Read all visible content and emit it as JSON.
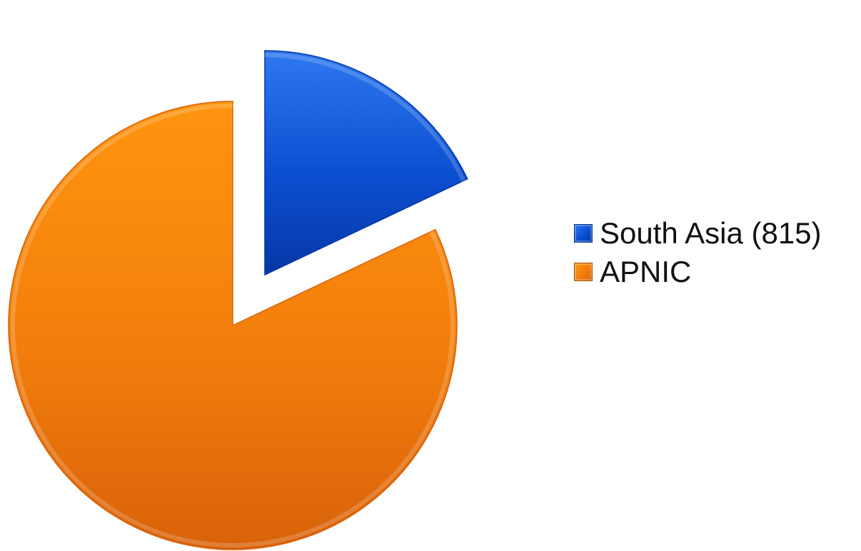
{
  "chart_data": {
    "type": "pie",
    "categories": [
      "South Asia (815)",
      "APNIC"
    ],
    "values": [
      815,
      3722
    ],
    "exploded": [
      true,
      false
    ],
    "start_angle_deg": 0,
    "legend_position": "right",
    "colors": [
      "#0b4fd1",
      "#f27e0c"
    ],
    "colors_dark": [
      "#0637a6",
      "#d9620a"
    ],
    "colors_light": [
      "#2e78f0",
      "#ff950f"
    ]
  }
}
